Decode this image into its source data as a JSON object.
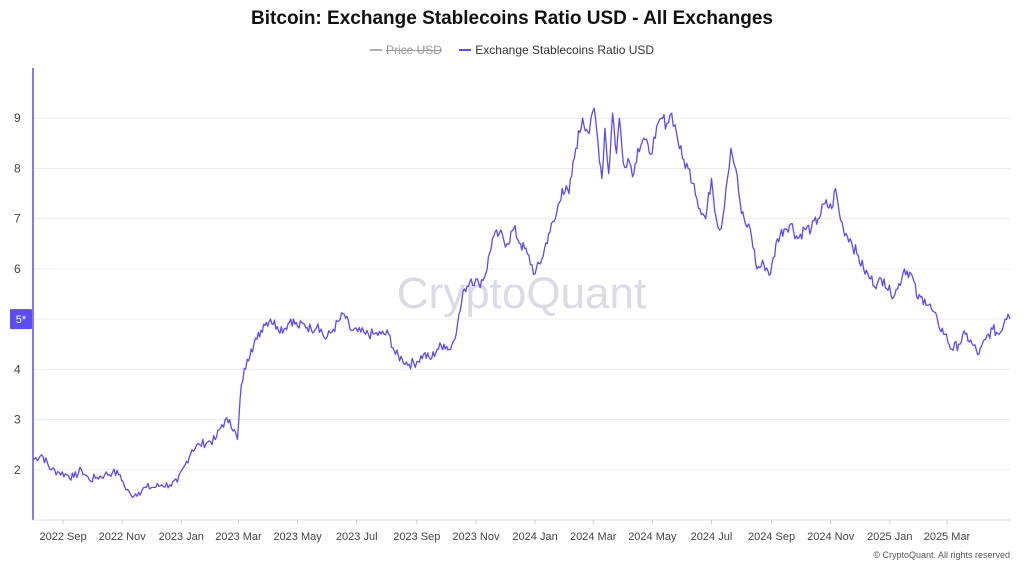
{
  "chart_data": {
    "type": "line",
    "title": "Bitcoin: Exchange Stablecoins Ratio USD - All Exchanges",
    "legend": [
      {
        "name": "Price USD",
        "color": "#b0b0b0",
        "visible": false
      },
      {
        "name": "Exchange Stablecoins Ratio USD",
        "color": "#5b4cf2",
        "visible": true
      }
    ],
    "legend_position": "top-center",
    "x_axis": {
      "type": "date",
      "range": [
        "2022-08-01",
        "2025-05-05"
      ],
      "tick_labels": [
        {
          "date": "2022-09-01",
          "label": "2022 Sep"
        },
        {
          "date": "2022-11-01",
          "label": "2022 Nov"
        },
        {
          "date": "2023-01-01",
          "label": "2023 Jan"
        },
        {
          "date": "2023-03-01",
          "label": "2023 Mar"
        },
        {
          "date": "2023-05-01",
          "label": "2023 May"
        },
        {
          "date": "2023-07-01",
          "label": "2023 Jul"
        },
        {
          "date": "2023-09-01",
          "label": "2023 Sep"
        },
        {
          "date": "2023-11-01",
          "label": "2023 Nov"
        },
        {
          "date": "2024-01-01",
          "label": "2024 Jan"
        },
        {
          "date": "2024-03-01",
          "label": "2024 Mar"
        },
        {
          "date": "2024-05-01",
          "label": "2024 May"
        },
        {
          "date": "2024-07-01",
          "label": "2024 Jul"
        },
        {
          "date": "2024-09-01",
          "label": "2024 Sep"
        },
        {
          "date": "2024-11-01",
          "label": "2024 Nov"
        },
        {
          "date": "2025-01-01",
          "label": "2025 Jan"
        },
        {
          "date": "2025-03-01",
          "label": "2025 Mar"
        }
      ]
    },
    "y_axis": {
      "range": [
        1,
        10
      ],
      "tick_labels": [
        2,
        3,
        4,
        5,
        6,
        7,
        8,
        9
      ],
      "current_value_badge": "5*"
    },
    "grid": {
      "horizontal": true,
      "vertical": false
    },
    "series": [
      {
        "name": "Exchange Stablecoins Ratio USD",
        "x": [
          "2022-08-01",
          "2022-08-10",
          "2022-08-20",
          "2022-08-28",
          "2022-09-05",
          "2022-09-12",
          "2022-09-20",
          "2022-09-28",
          "2022-10-06",
          "2022-10-14",
          "2022-10-22",
          "2022-10-30",
          "2022-11-05",
          "2022-11-10",
          "2022-11-18",
          "2022-11-26",
          "2022-12-04",
          "2022-12-12",
          "2022-12-20",
          "2022-12-28",
          "2023-01-05",
          "2023-01-12",
          "2023-01-20",
          "2023-01-28",
          "2023-02-05",
          "2023-02-12",
          "2023-02-20",
          "2023-02-28",
          "2023-03-04",
          "2023-03-10",
          "2023-03-14",
          "2023-03-20",
          "2023-03-27",
          "2023-04-03",
          "2023-04-10",
          "2023-04-17",
          "2023-04-24",
          "2023-05-01",
          "2023-05-08",
          "2023-05-15",
          "2023-05-22",
          "2023-05-30",
          "2023-06-07",
          "2023-06-14",
          "2023-06-18",
          "2023-06-24",
          "2023-07-02",
          "2023-07-10",
          "2023-07-18",
          "2023-07-26",
          "2023-08-03",
          "2023-08-10",
          "2023-08-17",
          "2023-08-24",
          "2023-09-01",
          "2023-09-08",
          "2023-09-15",
          "2023-09-22",
          "2023-09-29",
          "2023-10-06",
          "2023-10-13",
          "2023-10-20",
          "2023-10-27",
          "2023-11-04",
          "2023-11-11",
          "2023-11-18",
          "2023-11-25",
          "2023-12-03",
          "2023-12-10",
          "2023-12-17",
          "2023-12-24",
          "2024-01-01",
          "2024-01-08",
          "2024-01-15",
          "2024-01-22",
          "2024-01-29",
          "2024-02-05",
          "2024-02-12",
          "2024-02-19",
          "2024-02-26",
          "2024-03-02",
          "2024-03-06",
          "2024-03-10",
          "2024-03-13",
          "2024-03-17",
          "2024-03-21",
          "2024-03-25",
          "2024-03-28",
          "2024-04-01",
          "2024-04-06",
          "2024-04-12",
          "2024-04-16",
          "2024-04-22",
          "2024-04-28",
          "2024-05-04",
          "2024-05-10",
          "2024-05-16",
          "2024-05-21",
          "2024-05-26",
          "2024-06-01",
          "2024-06-07",
          "2024-06-13",
          "2024-06-19",
          "2024-06-25",
          "2024-07-01",
          "2024-07-06",
          "2024-07-11",
          "2024-07-16",
          "2024-07-21",
          "2024-07-26",
          "2024-08-01",
          "2024-08-05",
          "2024-08-10",
          "2024-08-17",
          "2024-08-24",
          "2024-08-31",
          "2024-09-07",
          "2024-09-14",
          "2024-09-21",
          "2024-09-28",
          "2024-10-05",
          "2024-10-12",
          "2024-10-19",
          "2024-10-26",
          "2024-11-02",
          "2024-11-06",
          "2024-11-10",
          "2024-11-14",
          "2024-11-21",
          "2024-11-28",
          "2024-12-05",
          "2024-12-12",
          "2024-12-19",
          "2024-12-26",
          "2025-01-02",
          "2025-01-09",
          "2025-01-16",
          "2025-01-23",
          "2025-01-30",
          "2025-02-06",
          "2025-02-13",
          "2025-02-20",
          "2025-02-27",
          "2025-03-06",
          "2025-03-13",
          "2025-03-20",
          "2025-03-27",
          "2025-04-03",
          "2025-04-10",
          "2025-04-17",
          "2025-04-24",
          "2025-04-30",
          "2025-05-03",
          "2025-05-05"
        ],
        "values": [
          2.2,
          2.3,
          2.0,
          1.95,
          1.9,
          1.85,
          2.0,
          1.8,
          1.85,
          1.9,
          1.95,
          1.9,
          1.6,
          1.5,
          1.55,
          1.65,
          1.65,
          1.7,
          1.7,
          1.75,
          2.1,
          2.4,
          2.5,
          2.55,
          2.6,
          2.9,
          3.0,
          2.6,
          3.7,
          4.2,
          4.4,
          4.6,
          4.9,
          5.0,
          4.85,
          4.8,
          5.0,
          4.85,
          4.9,
          4.8,
          4.9,
          4.6,
          4.8,
          5.0,
          5.1,
          4.8,
          4.75,
          4.7,
          4.7,
          4.7,
          4.7,
          4.3,
          4.2,
          4.1,
          4.15,
          4.3,
          4.2,
          4.4,
          4.5,
          4.4,
          4.9,
          5.6,
          5.8,
          5.7,
          5.9,
          6.6,
          6.7,
          6.5,
          6.8,
          6.5,
          6.3,
          5.9,
          6.2,
          6.7,
          7.0,
          7.6,
          7.5,
          8.4,
          9.0,
          8.7,
          9.2,
          8.5,
          7.8,
          8.8,
          7.9,
          9.1,
          8.3,
          9.0,
          8.1,
          8.2,
          7.9,
          8.4,
          8.6,
          8.3,
          8.6,
          9.0,
          8.9,
          9.1,
          8.7,
          8.2,
          8.0,
          7.7,
          7.2,
          7.0,
          7.8,
          7.0,
          6.8,
          7.6,
          8.4,
          8.0,
          7.1,
          6.9,
          6.8,
          6.0,
          6.1,
          5.9,
          6.6,
          6.8,
          6.9,
          6.6,
          6.8,
          6.8,
          7.0,
          7.3,
          7.2,
          7.6,
          7.1,
          6.8,
          6.6,
          6.3,
          6.0,
          5.8,
          5.7,
          5.8,
          5.5,
          5.6,
          6.0,
          5.9,
          5.4,
          5.4,
          5.2,
          4.9,
          4.7,
          4.4,
          4.5,
          4.7,
          4.5,
          4.3,
          4.6,
          4.8,
          4.7,
          5.0,
          5.1,
          5.0
        ]
      }
    ]
  },
  "watermark": "CryptoQuant",
  "copyright": "© CryptoQuant. All rights reserved"
}
